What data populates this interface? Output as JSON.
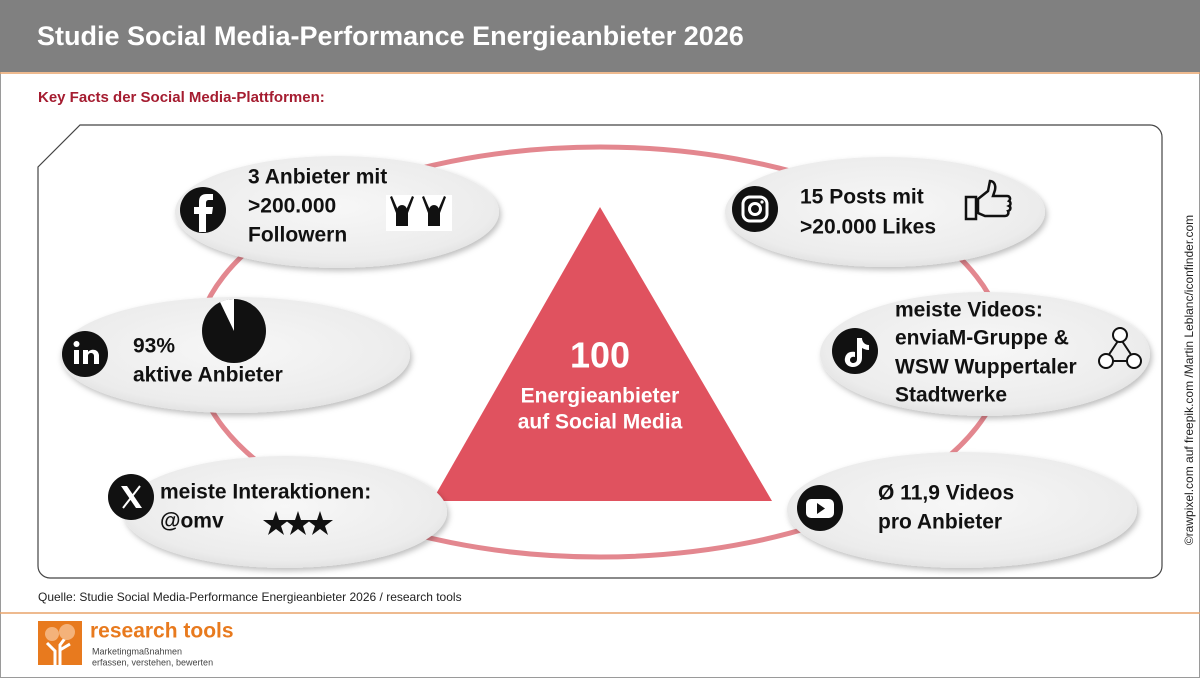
{
  "header": {
    "title": "Studie Social Media-Performance Energieanbieter 2026"
  },
  "subtitle": "Key Facts der Social Media-Plattformen:",
  "center": {
    "number": 100,
    "lines": [
      "Energieanbieter",
      "auf Social Media"
    ]
  },
  "facts": [
    {
      "lines": [
        "3 Anbieter mit",
        ">200.000",
        "Followern"
      ]
    },
    {
      "lines": [
        "15 Posts mit",
        ">20.000 Likes"
      ]
    },
    {
      "lines": [
        "93%",
        "aktive Anbieter"
      ]
    },
    {
      "lines": [
        "meiste Videos:",
        "enviaM-Gruppe &",
        "WSW Wuppertaler",
        "Stadtwerke"
      ]
    },
    {
      "lines": [
        "meiste Interaktionen:",
        "@omv"
      ]
    },
    {
      "lines": [
        "Ø 11,9 Videos",
        "pro Anbieter"
      ]
    }
  ],
  "credit": "©rawpixel.com auf freepik.com /Martin Leblanc/iconfinder.com",
  "source": "Quelle: Studie Social Media-Performance Energieanbieter 2026 / research tools",
  "logo": {
    "name": "research tools",
    "tagline": [
      "Marketingmaßnahmen",
      "erfassen, verstehen, bewerten"
    ]
  }
}
